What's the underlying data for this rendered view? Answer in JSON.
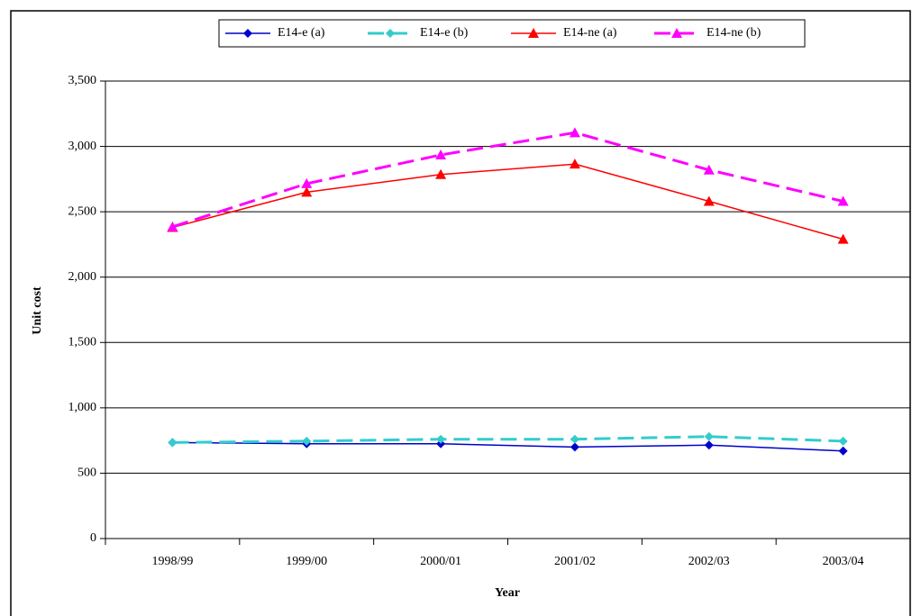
{
  "chart_data": {
    "type": "line",
    "x_label": "Year",
    "y_label": "Unit cost",
    "categories": [
      "1998/99",
      "1999/00",
      "2000/01",
      "2001/02",
      "2002/03",
      "2003/04"
    ],
    "series": [
      {
        "name": "E14-e (a)",
        "color": "#0000cc",
        "dashed": false,
        "marker": "diamond",
        "values": [
          735,
          725,
          725,
          700,
          715,
          670
        ]
      },
      {
        "name": "E14-e (b)",
        "color": "#33cccc",
        "dashed": true,
        "marker": "diamond",
        "values": [
          735,
          745,
          760,
          760,
          780,
          745
        ]
      },
      {
        "name": "E14-ne (a)",
        "color": "#ff0000",
        "dashed": false,
        "marker": "triangle",
        "values": [
          2380,
          2650,
          2785,
          2865,
          2580,
          2290
        ]
      },
      {
        "name": "E14-ne (b)",
        "color": "#ff00ff",
        "dashed": true,
        "marker": "triangle",
        "values": [
          2385,
          2715,
          2935,
          3105,
          2820,
          2580
        ]
      }
    ],
    "ylim": [
      0,
      3500
    ],
    "yticks": [
      0,
      500,
      {
        "value": 1000,
        "label": "1,000"
      },
      {
        "value": 1500,
        "label": "1,500"
      },
      {
        "value": 2000,
        "label": "2,000"
      },
      {
        "value": 2500,
        "label": "2,500"
      },
      {
        "value": 3000,
        "label": "3,000"
      },
      {
        "value": 3500,
        "label": "3,500"
      }
    ],
    "grid": true,
    "legend": "top"
  }
}
